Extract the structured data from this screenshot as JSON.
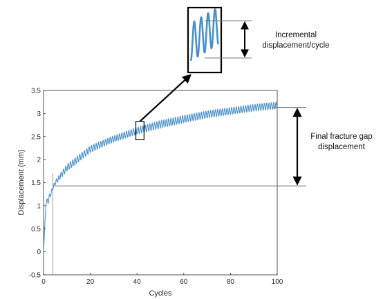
{
  "chart_data": {
    "type": "line",
    "title": "",
    "xlabel": "Cycles",
    "ylabel": "Displacement (mm)",
    "xlim": [
      0,
      100
    ],
    "ylim": [
      -0.5,
      3.5
    ],
    "x_ticks": [
      0,
      20,
      40,
      60,
      80,
      100
    ],
    "y_ticks": [
      -0.5,
      0,
      0.5,
      1,
      1.5,
      2,
      2.5,
      3,
      3.5
    ],
    "x_tick_labels": [
      "0",
      "20",
      "40",
      "60",
      "80",
      "100"
    ],
    "y_tick_labels": [
      "-0.5",
      "0",
      "0.5",
      "1",
      "1.5",
      "2",
      "2.5",
      "3",
      "3.5"
    ],
    "grid": false,
    "series": [
      {
        "color": "#4a90c8",
        "cycles": [
          0,
          1,
          2,
          3,
          4,
          5,
          10,
          20,
          30,
          40,
          50,
          60,
          70,
          80,
          90,
          100
        ],
        "lower_envelope": [
          0.0,
          1.0,
          1.05,
          1.2,
          1.35,
          1.45,
          1.75,
          2.15,
          2.38,
          2.55,
          2.68,
          2.8,
          2.9,
          2.98,
          3.05,
          3.1
        ],
        "upper_envelope": [
          0.0,
          1.1,
          1.2,
          1.3,
          1.42,
          1.55,
          1.9,
          2.3,
          2.52,
          2.7,
          2.85,
          2.96,
          3.06,
          3.13,
          3.2,
          3.25
        ]
      }
    ],
    "initial_spike": {
      "x": 4,
      "min": -0.5,
      "max": 1.7
    },
    "reference_lines": [
      {
        "y": 1.43,
        "x_from": 4
      },
      {
        "y": 3.13,
        "x_from": 100
      }
    ],
    "inset_box": {
      "x_range": [
        39.5,
        43
      ],
      "y_range": [
        2.43,
        2.83
      ]
    },
    "annotations": [
      {
        "id": "incremental",
        "lines": [
          "Incremental",
          "displacement/cycle"
        ]
      },
      {
        "id": "final_gap",
        "lines": [
          "Final fracture gap",
          "displacement"
        ]
      }
    ]
  },
  "colors": {
    "series": "#4a90c8",
    "axes": "#262626",
    "annotation": "#000000",
    "reference_line": "#555555"
  }
}
